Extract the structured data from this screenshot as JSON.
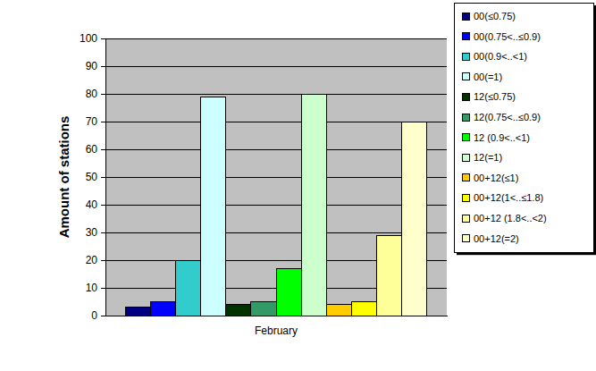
{
  "chart_data": {
    "type": "bar",
    "y_label": "Amount of stations",
    "categories": [
      "February"
    ],
    "series": [
      {
        "name": "00(≤0.75)",
        "color": "#000080",
        "values": [
          3
        ]
      },
      {
        "name": "00(0.75<..≤0.9)",
        "color": "#0000ff",
        "values": [
          5
        ]
      },
      {
        "name": "00(0.9<..<1)",
        "color": "#33cccc",
        "values": [
          20
        ]
      },
      {
        "name": "00(=1)",
        "color": "#ccffff",
        "values": [
          79
        ]
      },
      {
        "name": "12(≤0.75)",
        "color": "#003300",
        "values": [
          4
        ]
      },
      {
        "name": "12(0.75<..≤0.9)",
        "color": "#339966",
        "values": [
          5
        ]
      },
      {
        "name": "12 (0.9<..<1)",
        "color": "#00ff00",
        "values": [
          17
        ]
      },
      {
        "name": "12(=1)",
        "color": "#ccffcc",
        "values": [
          80
        ]
      },
      {
        "name": "00+12(≤1)",
        "color": "#ffcc00",
        "values": [
          4
        ]
      },
      {
        "name": "00+12(1<..≤1.8)",
        "color": "#ffff00",
        "values": [
          5
        ]
      },
      {
        "name": "00+12 (1.8<..<2)",
        "color": "#ffff99",
        "values": [
          29
        ]
      },
      {
        "name": "00+12(=2)",
        "color": "#ffffcc",
        "values": [
          70
        ]
      }
    ],
    "ylim": [
      0,
      100
    ],
    "yticks": [
      0,
      10,
      20,
      30,
      40,
      50,
      60,
      70,
      80,
      90,
      100
    ],
    "grid": true,
    "legend": "top-right"
  }
}
